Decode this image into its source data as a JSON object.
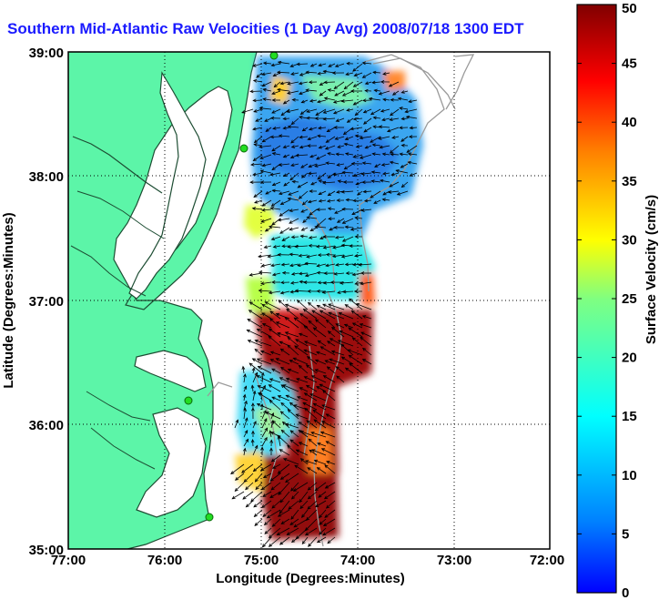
{
  "title": "Southern Mid-Atlantic Raw Velocities (1 Day Avg) 2008/07/18 1300 EDT",
  "map": {
    "xlabel": "Longitude (Degrees:Minutes)",
    "ylabel": "Latitude (Degrees:Minutes)",
    "xticks": [
      "77:00",
      "76:00",
      "75:00",
      "74:00",
      "73:00",
      "72:00"
    ],
    "yticks": [
      "39:00",
      "38:00",
      "37:00",
      "36:00",
      "35:00"
    ],
    "grid": "dotted",
    "colors": {
      "land": "#5cf5a8",
      "water": "#ffffff",
      "coast": "#1d4d33",
      "bathymetry": "#9a9a9a",
      "station": "#22dd22",
      "vector": "#000000"
    }
  },
  "colorbar": {
    "label": "Surface Velocity (cm/s)",
    "ticks": [
      "0",
      "5",
      "10",
      "15",
      "20",
      "25",
      "30",
      "35",
      "40",
      "45",
      "50"
    ],
    "min": 0,
    "max": 50,
    "colormap": "jet"
  }
}
